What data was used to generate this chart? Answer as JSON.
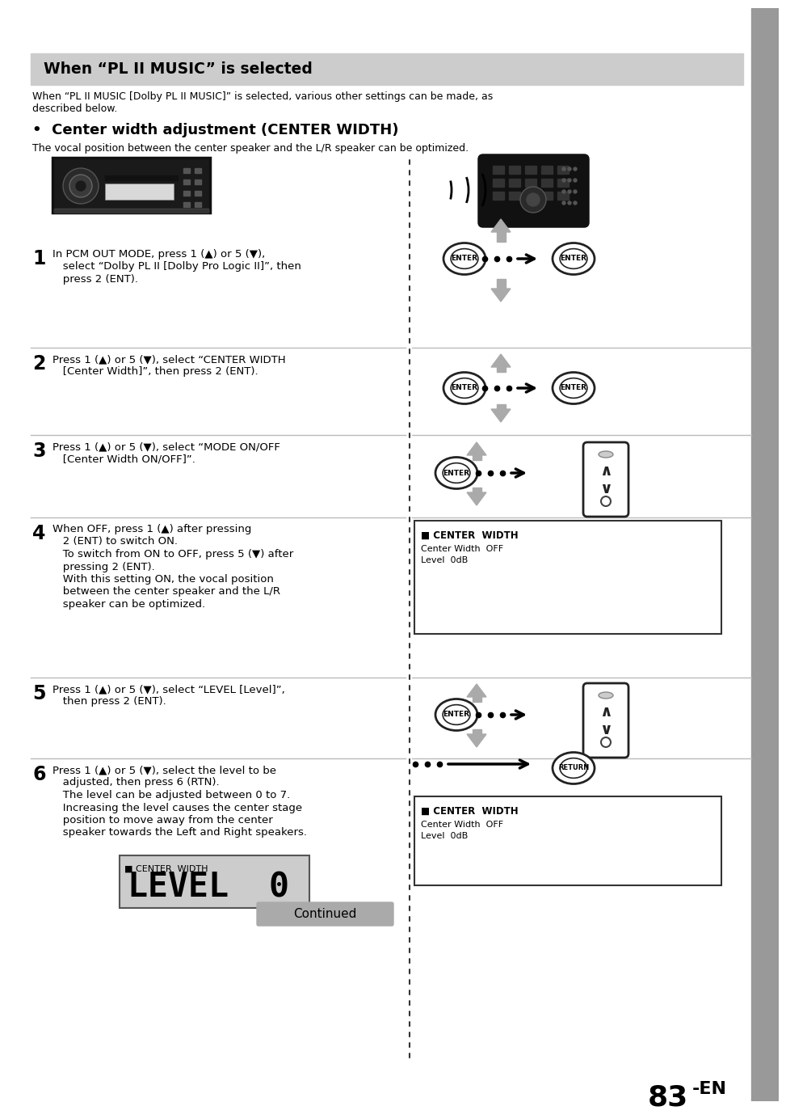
{
  "bg_color": "#ffffff",
  "header_bg": "#cccccc",
  "header_text": "When “PL II MUSIC” is selected",
  "intro_line1": "When “PL II MUSIC [Dolby PL II MUSIC]” is selected, various other settings can be made, as",
  "intro_line2": "described below.",
  "bullet_title": "•  Center width adjustment (CENTER WIDTH)",
  "subtitle": "The vocal position between the center speaker and the L/R speaker can be optimized.",
  "steps": [
    {
      "num": "1",
      "text": "In PCM OUT MODE, press 1 (▲) or 5 (▼),\n   select “Dolby PL II [Dolby Pro Logic II]”, then\n   press 2 (ENT)."
    },
    {
      "num": "2",
      "text": "Press 1 (▲) or 5 (▼), select “CENTER WIDTH\n   [Center Width]”, then press 2 (ENT)."
    },
    {
      "num": "3",
      "text": "Press 1 (▲) or 5 (▼), select “MODE ON/OFF\n   [Center Width ON/OFF]”."
    },
    {
      "num": "4",
      "text": "When OFF, press 1 (▲) after pressing\n   2 (ENT) to switch ON.\n   To switch from ON to OFF, press 5 (▼) after\n   pressing 2 (ENT).\n   With this setting ON, the vocal position\n   between the center speaker and the L/R\n   speaker can be optimized."
    },
    {
      "num": "5",
      "text": "Press 1 (▲) or 5 (▼), select “LEVEL [Level]”,\n   then press 2 (ENT)."
    },
    {
      "num": "6",
      "text": "Press 1 (▲) or 5 (▼), select the level to be\n   adjusted, then press 6 (RTN).\n   The level can be adjusted between 0 to 7.\n   Increasing the level causes the center stage\n   position to move away from the center\n   speaker towards the Left and Right speakers."
    }
  ],
  "display_box1_title": "CENTER  WIDTH",
  "display_box1_line1": "Center Width  OFF",
  "display_box1_line2": "Level  0dB",
  "display_box2_title": "CENTER  WIDTH",
  "display_box2_line1": "Center Width  OFF",
  "display_box2_line2": "Level  0dB",
  "level_title": "■ CENTER  WIDTH",
  "level_value": "LEVEL  0",
  "continued_text": "Continued",
  "page_number": "83",
  "page_suffix": "-EN",
  "step_tops": [
    290,
    420,
    528,
    630,
    828,
    928
  ],
  "step_bots": [
    420,
    528,
    630,
    828,
    928,
    1100
  ]
}
